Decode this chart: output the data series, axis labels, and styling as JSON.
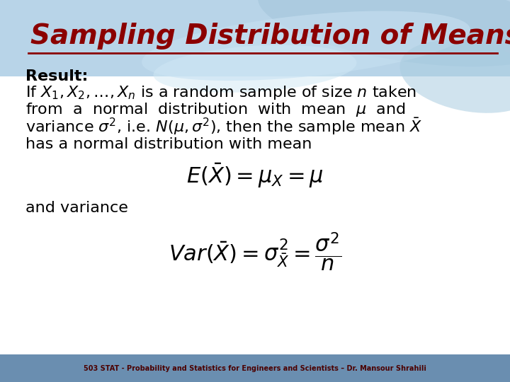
{
  "title": "Sampling Distribution of Means",
  "title_color": "#8B0000",
  "title_fontsize": 28,
  "footer_text": "503 STAT - Probability and Statistics for Engineers and Scientists – Dr. Mansour Shrahili",
  "footer_bg": "#6A8EB0",
  "footer_text_color": "#4B0000",
  "result_label": "Result:",
  "and_variance": "and variance",
  "body_fontsize": 16,
  "eq_fontsize": 22
}
